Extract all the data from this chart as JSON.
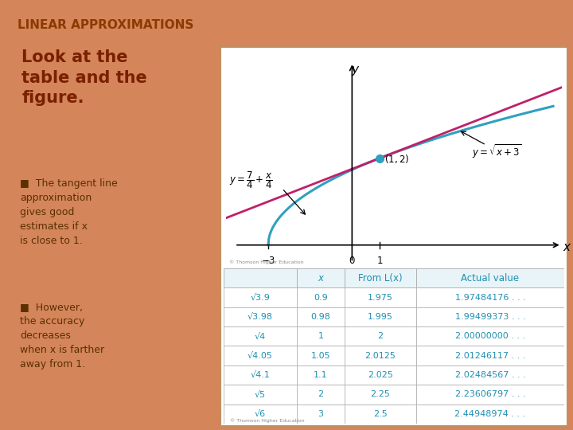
{
  "title": "LINEAR APPROXIMATIONS",
  "title_color": "#8B3A00",
  "title_bg": "#E8B898",
  "slide_bg": "#D4855A",
  "panel_bg": "#FFFFFF",
  "panel_border": "#C09060",
  "left_heading": "Look at the\ntable and the\nfigure.",
  "heading_color": "#7A2000",
  "bullet1": "The tangent line\napproximation\ngives good\nestimates if x\nis close to 1.",
  "bullet2": "However,\nthe accuracy\ndecreases\nwhen x is farther\naway from 1.",
  "bullet_color": "#5A3000",
  "graph_xlim": [
    -4.5,
    7.5
  ],
  "graph_ylim": [
    -0.5,
    4.2
  ],
  "line_color": "#C0206A",
  "curve_color": "#30A0C0",
  "point_color": "#30A0C0",
  "table_text_color": "#2090B0",
  "table_header_bg": "#E8F4F8",
  "table_row_bg": "#FFFFFF",
  "table_border": "#AAAAAA",
  "col1_header": "",
  "col2_header": "x",
  "col3_header": "From L(x)",
  "col4_header": "Actual value",
  "table_rows": [
    [
      "√3.9",
      "0.9",
      "1.975",
      "1.97484176 . . ."
    ],
    [
      "√3.98",
      "0.98",
      "1.995",
      "1.99499373 . . ."
    ],
    [
      "√4",
      "1",
      "2",
      "2.00000000 . . ."
    ],
    [
      "√4.05",
      "1.05",
      "2.0125",
      "2.01246117 . . ."
    ],
    [
      "√4.1",
      "1.1",
      "2.025",
      "2.02484567 . . ."
    ],
    [
      "√5",
      "2",
      "2.25",
      "2.23606797 . . ."
    ],
    [
      "√6",
      "3",
      "2.5",
      "2.44948974 . . ."
    ]
  ]
}
